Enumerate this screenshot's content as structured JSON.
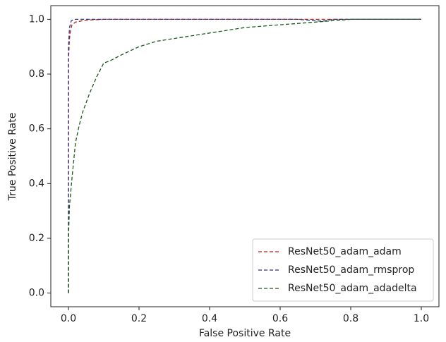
{
  "chart_data": {
    "type": "line",
    "xlabel": "False Positive Rate",
    "ylabel": "True Positive Rate",
    "xlim": [
      -0.05,
      1.05
    ],
    "ylim": [
      -0.05,
      1.05
    ],
    "xticks": [
      {
        "value": 0,
        "label": "0.0"
      },
      0.2,
      0.4,
      0.6,
      0.8,
      {
        "value": 1,
        "label": "1.0"
      }
    ],
    "yticks": [
      {
        "value": 0,
        "label": "0.0"
      },
      0.2,
      0.4,
      0.6,
      0.8,
      {
        "value": 1,
        "label": "1.0"
      }
    ],
    "legend": "lower right",
    "line_style": "dashed",
    "series": [
      {
        "name": "ResNet50_adam_adam",
        "color": "#b22222",
        "x": [
          0,
          0,
          0.003,
          0.006,
          0.01,
          0.02,
          0.05,
          0.1,
          0.5,
          1
        ],
        "values": [
          0,
          0.85,
          0.93,
          0.96,
          0.98,
          0.99,
          0.997,
          1,
          1,
          1
        ]
      },
      {
        "name": "ResNet50_adam_rmsprop",
        "color": "#2f2f7a",
        "x": [
          0,
          0,
          0.003,
          0.008,
          0.02,
          0.2,
          0.65,
          0.72,
          0.75,
          1
        ],
        "values": [
          0,
          0.9,
          0.97,
          0.995,
          1,
          1,
          1,
          0.993,
          1,
          1
        ]
      },
      {
        "name": "ResNet50_adam_adadelta",
        "color": "#1a5a1a",
        "x": [
          0,
          0,
          0.003,
          0.01,
          0.02,
          0.03,
          0.04,
          0.06,
          0.08,
          0.1,
          0.12,
          0.15,
          0.2,
          0.25,
          0.3,
          0.4,
          0.5,
          0.6,
          0.65,
          0.7,
          0.8,
          1
        ],
        "values": [
          0,
          0.2,
          0.32,
          0.42,
          0.55,
          0.61,
          0.66,
          0.73,
          0.79,
          0.84,
          0.85,
          0.87,
          0.9,
          0.92,
          0.93,
          0.95,
          0.97,
          0.98,
          0.985,
          0.99,
          1,
          1
        ]
      }
    ]
  }
}
